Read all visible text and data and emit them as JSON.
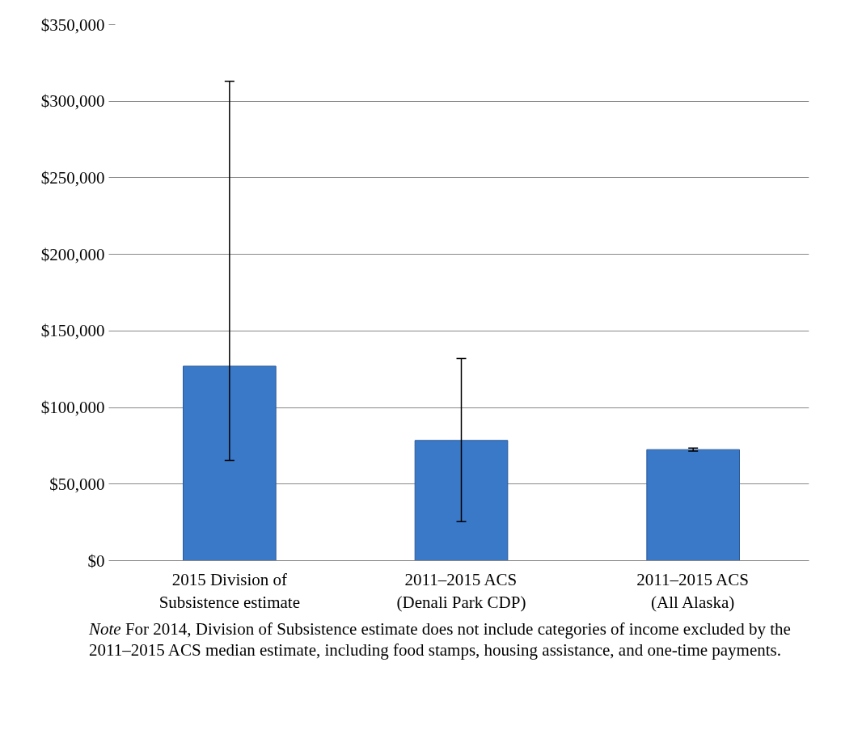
{
  "chart_data": {
    "type": "bar",
    "categories": [
      "2015 Division of\nSubsistence estimate",
      "2011–2015 ACS\n(Denali Park CDP)",
      "2011–2015 ACS\n(All Alaska)"
    ],
    "values": [
      127000,
      78500,
      72500
    ],
    "errors": [
      [
        65500,
        313000
      ],
      [
        25500,
        132000
      ],
      [
        71500,
        73500
      ]
    ],
    "color": "#3a78c8",
    "ylim": [
      0,
      350000
    ],
    "yticks": [
      {
        "value": 0,
        "label": "$0"
      },
      {
        "value": 50000,
        "label": "$50,000"
      },
      {
        "value": 100000,
        "label": "$100,000"
      },
      {
        "value": 150000,
        "label": "$150,000"
      },
      {
        "value": 200000,
        "label": "$200,000"
      },
      {
        "value": 250000,
        "label": "$250,000"
      },
      {
        "value": 300000,
        "label": "$300,000"
      },
      {
        "value": 350000,
        "label": "$350,000"
      }
    ],
    "grid": "y",
    "annotations": [
      "Note For 2014, Division of Subsistence estimate does not include categories of income excluded by the 2011–2015 ACS median estimate, including food stamps, housing assistance, and one-time payments."
    ]
  }
}
